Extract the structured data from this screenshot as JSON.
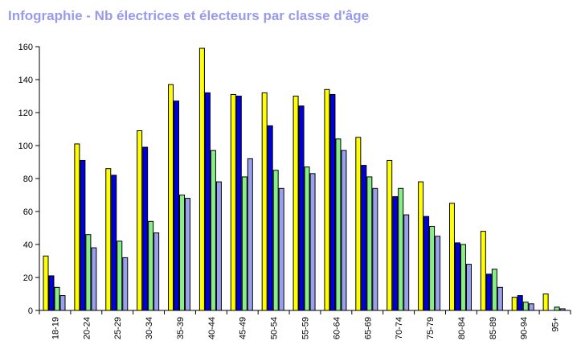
{
  "title": "Infographie - Nb électrices et électeurs par classe d'âge",
  "chart_data": {
    "type": "bar",
    "title": "Infographie - Nb électrices et électeurs par classe d'âge",
    "xlabel": "",
    "ylabel": "",
    "ylim": [
      0,
      160
    ],
    "yticks": [
      0,
      20,
      40,
      60,
      80,
      100,
      120,
      140,
      160
    ],
    "grid": false,
    "legend": "none",
    "categories": [
      "18-19",
      "20-24",
      "25-29",
      "30-34",
      "35-39",
      "40-44",
      "45-49",
      "50-54",
      "55-59",
      "60-64",
      "65-69",
      "70-74",
      "75-79",
      "80-84",
      "85-89",
      "90-94",
      "95+"
    ],
    "series": [
      {
        "color": "#ffff00",
        "values": [
          33,
          101,
          86,
          109,
          137,
          159,
          131,
          132,
          130,
          134,
          105,
          91,
          78,
          65,
          48,
          8,
          10
        ]
      },
      {
        "color": "#0000dd",
        "values": [
          21,
          91,
          82,
          99,
          127,
          132,
          130,
          112,
          124,
          131,
          88,
          69,
          57,
          41,
          22,
          9,
          0
        ]
      },
      {
        "color": "#88ee88",
        "values": [
          14,
          46,
          42,
          54,
          70,
          97,
          81,
          85,
          87,
          104,
          81,
          74,
          51,
          40,
          25,
          5,
          2
        ]
      },
      {
        "color": "#99a0ee",
        "values": [
          9,
          38,
          32,
          47,
          68,
          78,
          92,
          74,
          83,
          97,
          74,
          58,
          45,
          28,
          14,
          4,
          1
        ]
      }
    ]
  }
}
